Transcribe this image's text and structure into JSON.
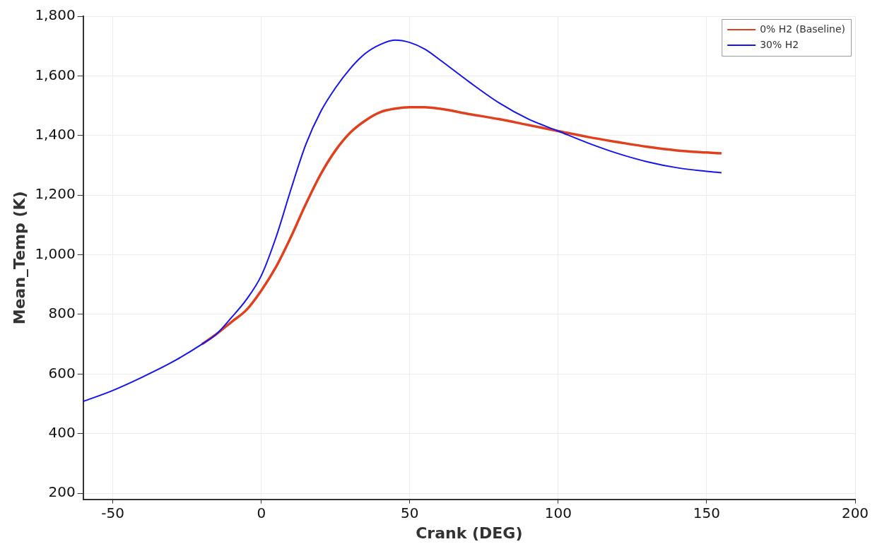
{
  "chart_data": {
    "type": "line",
    "xlabel": "Crank (DEG)",
    "ylabel": "Mean_Temp (K)",
    "x": [
      -60,
      -50,
      -40,
      -30,
      -20,
      -15,
      -10,
      -5,
      0,
      5,
      10,
      15,
      20,
      25,
      30,
      35,
      40,
      45,
      50,
      55,
      60,
      70,
      80,
      90,
      100,
      110,
      120,
      130,
      140,
      150,
      155
    ],
    "series": [
      {
        "name": "0% H2 (Baseline)",
        "color": "#e0401e",
        "values": [
          null,
          null,
          null,
          null,
          700,
          735,
          775,
          815,
          880,
          960,
          1060,
          1170,
          1270,
          1350,
          1410,
          1450,
          1478,
          1490,
          1495,
          1495,
          1490,
          1472,
          1455,
          1435,
          1415,
          1395,
          1378,
          1362,
          1350,
          1343,
          1340
        ]
      },
      {
        "name": "30% H2",
        "color": "#1414f0",
        "values": [
          508,
          545,
          590,
          640,
          700,
          735,
          790,
          850,
          930,
          1060,
          1220,
          1370,
          1480,
          1560,
          1625,
          1675,
          1705,
          1720,
          1712,
          1690,
          1655,
          1580,
          1510,
          1455,
          1415,
          1375,
          1340,
          1312,
          1292,
          1280,
          1275
        ]
      }
    ],
    "xlim": [
      -60,
      200
    ],
    "xticks": [
      -50,
      0,
      50,
      100,
      150,
      200
    ],
    "ylim": [
      180,
      1800
    ],
    "yticks": [
      {
        "value": 200,
        "label": "200"
      },
      {
        "value": 400,
        "label": "400"
      },
      {
        "value": 600,
        "label": "600"
      },
      {
        "value": 800,
        "label": "800"
      },
      {
        "value": 1000,
        "label": "1,000"
      },
      {
        "value": 1200,
        "label": "1,200"
      },
      {
        "value": 1400,
        "label": "1,400"
      },
      {
        "value": 1600,
        "label": "1,600"
      },
      {
        "value": 1800,
        "label": "1,800"
      }
    ],
    "grid": true,
    "legend": "top right",
    "marker": "none",
    "line_style": "solid"
  }
}
